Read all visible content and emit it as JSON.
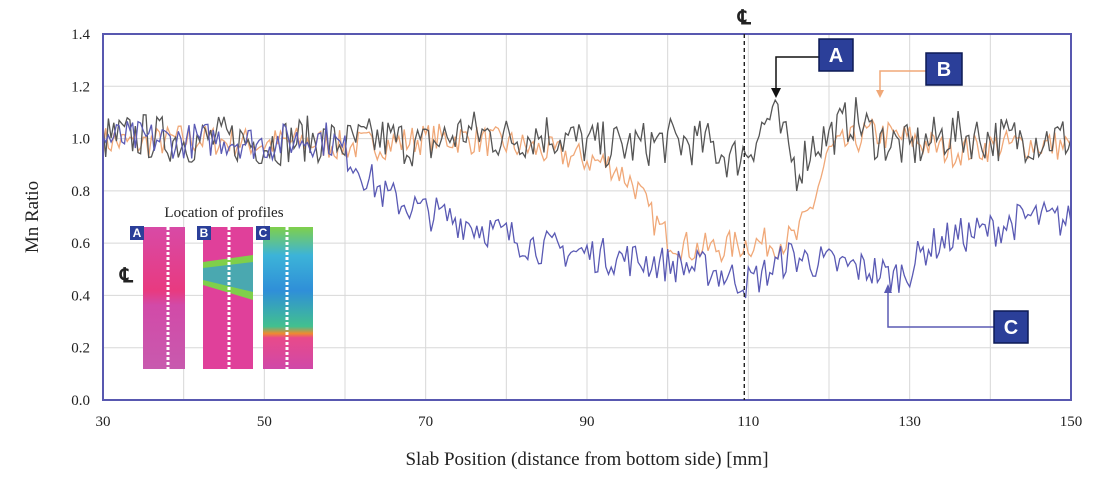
{
  "chart_data": {
    "type": "line",
    "xlabel": "Slab Position (distance from bottom side) [mm]",
    "ylabel": "Mn Ratio",
    "xlim": [
      30,
      150
    ],
    "ylim": [
      0.0,
      1.4
    ],
    "xticks": [
      "30",
      "50",
      "70",
      "90",
      "110",
      "130",
      "150"
    ],
    "yticks": [
      "0.0",
      "0.2",
      "0.4",
      "0.6",
      "0.8",
      "1.0",
      "1.2",
      "1.4"
    ],
    "grid": true,
    "centerline": {
      "x": 109.5,
      "label": "℄"
    },
    "series": [
      {
        "name": "A",
        "color": "#555555",
        "x": [
          30,
          35,
          40,
          45,
          50,
          55,
          60,
          65,
          70,
          75,
          80,
          85,
          90,
          95,
          100,
          105,
          108,
          110,
          113,
          116,
          118,
          120,
          123,
          126,
          130,
          135,
          140,
          145,
          150
        ],
        "y": [
          1.0,
          1.01,
          0.99,
          1.0,
          0.98,
          1.0,
          0.98,
          1.0,
          0.97,
          1.03,
          1.0,
          1.02,
          0.98,
          0.97,
          0.99,
          0.98,
          0.92,
          0.96,
          1.1,
          0.88,
          0.98,
          1.01,
          1.08,
          1.0,
          0.96,
          1.02,
          1.0,
          1.0,
          1.0
        ]
      },
      {
        "name": "B",
        "color": "#f0a878",
        "x": [
          30,
          35,
          40,
          45,
          50,
          55,
          60,
          65,
          70,
          75,
          80,
          85,
          90,
          93,
          96,
          98,
          100,
          103,
          106,
          110,
          113,
          116,
          118,
          120,
          125,
          130,
          135,
          140,
          145,
          150
        ],
        "y": [
          0.99,
          0.98,
          1.0,
          0.99,
          0.98,
          0.99,
          0.97,
          0.98,
          1.0,
          1.0,
          0.98,
          0.95,
          0.92,
          0.9,
          0.82,
          0.7,
          0.62,
          0.58,
          0.58,
          0.6,
          0.6,
          0.62,
          0.75,
          0.95,
          1.02,
          1.0,
          0.95,
          0.97,
          0.98,
          0.97
        ]
      },
      {
        "name": "C",
        "color": "#5a5ab4",
        "x": [
          30,
          35,
          40,
          45,
          50,
          55,
          58,
          60,
          62,
          65,
          70,
          75,
          80,
          85,
          90,
          95,
          100,
          105,
          110,
          113,
          115,
          120,
          125,
          128,
          130,
          132,
          135,
          140,
          145,
          150
        ],
        "y": [
          1.0,
          1.0,
          0.99,
          1.0,
          0.98,
          1.0,
          1.0,
          0.95,
          0.88,
          0.78,
          0.72,
          0.68,
          0.63,
          0.58,
          0.56,
          0.54,
          0.52,
          0.5,
          0.45,
          0.5,
          0.55,
          0.52,
          0.5,
          0.47,
          0.5,
          0.58,
          0.62,
          0.65,
          0.7,
          0.68
        ]
      }
    ],
    "callouts": [
      {
        "label": "A",
        "bg": "#2b3f99"
      },
      {
        "label": "B",
        "bg": "#2b3f99"
      },
      {
        "label": "C",
        "bg": "#2b3f99"
      }
    ],
    "inset": {
      "title": "Location of profiles",
      "centerline_label": "℄",
      "panels": [
        "A",
        "B",
        "C"
      ]
    }
  }
}
